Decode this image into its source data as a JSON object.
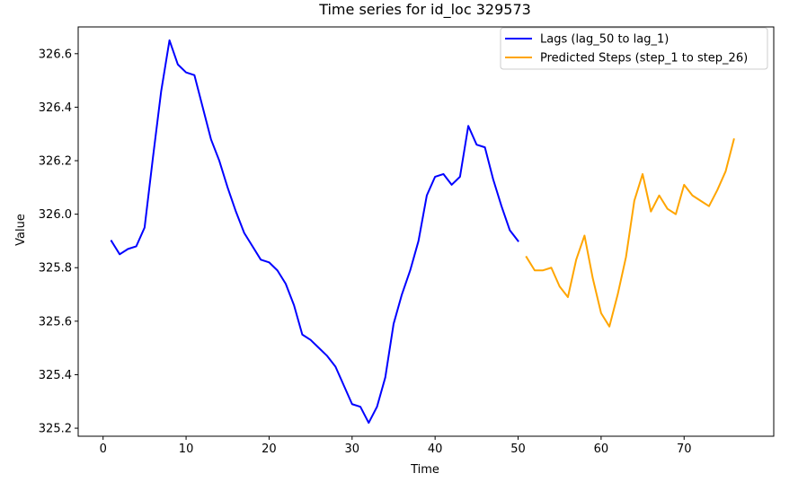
{
  "chart_data": {
    "type": "line",
    "title": "Time series for id_loc 329573",
    "xlabel": "Time",
    "ylabel": "Value",
    "xlim": [
      -3,
      80.8
    ],
    "ylim": [
      325.17,
      326.7
    ],
    "xticks": [
      0,
      10,
      20,
      30,
      40,
      50,
      60,
      70
    ],
    "yticks": [
      325.2,
      325.4,
      325.6,
      325.8,
      326.0,
      326.2,
      326.4,
      326.6
    ],
    "ytick_labels": [
      "325.2",
      "325.4",
      "325.6",
      "325.8",
      "326.0",
      "326.2",
      "326.4",
      "326.6"
    ],
    "grid": false,
    "legend_position": "top-right",
    "series": [
      {
        "name": "Lags (lag_50 to lag_1)",
        "color": "#0000ff",
        "x": [
          1,
          2,
          3,
          4,
          5,
          6,
          7,
          8,
          9,
          10,
          11,
          12,
          13,
          14,
          15,
          16,
          17,
          18,
          19,
          20,
          21,
          22,
          23,
          24,
          25,
          26,
          27,
          28,
          29,
          30,
          31,
          32,
          33,
          34,
          35,
          36,
          37,
          38,
          39,
          40,
          41,
          42,
          43,
          44,
          45,
          46,
          47,
          48,
          49,
          50
        ],
        "y": [
          325.9,
          325.85,
          325.87,
          325.88,
          325.95,
          326.21,
          326.46,
          326.65,
          326.56,
          326.53,
          326.52,
          326.4,
          326.28,
          326.2,
          326.1,
          326.01,
          325.93,
          325.88,
          325.83,
          325.82,
          325.79,
          325.74,
          325.66,
          325.55,
          325.53,
          325.5,
          325.47,
          325.43,
          325.36,
          325.29,
          325.28,
          325.22,
          325.28,
          325.39,
          325.59,
          325.7,
          325.79,
          325.9,
          326.07,
          326.14,
          326.15,
          326.11,
          326.14,
          326.33,
          326.26,
          326.25,
          326.13,
          326.03,
          325.94,
          325.9
        ]
      },
      {
        "name": "Predicted Steps (step_1 to step_26)",
        "color": "#ffa500",
        "x": [
          51,
          52,
          53,
          54,
          55,
          56,
          57,
          58,
          59,
          60,
          61,
          62,
          63,
          64,
          65,
          66,
          67,
          68,
          69,
          70,
          71,
          72,
          73,
          74,
          75,
          76
        ],
        "y": [
          325.84,
          325.79,
          325.79,
          325.8,
          325.73,
          325.69,
          325.83,
          325.92,
          325.76,
          325.63,
          325.58,
          325.7,
          325.84,
          326.05,
          326.15,
          326.01,
          326.07,
          326.02,
          326.0,
          326.11,
          326.07,
          326.05,
          326.03,
          326.09,
          326.16,
          326.28
        ]
      }
    ]
  }
}
